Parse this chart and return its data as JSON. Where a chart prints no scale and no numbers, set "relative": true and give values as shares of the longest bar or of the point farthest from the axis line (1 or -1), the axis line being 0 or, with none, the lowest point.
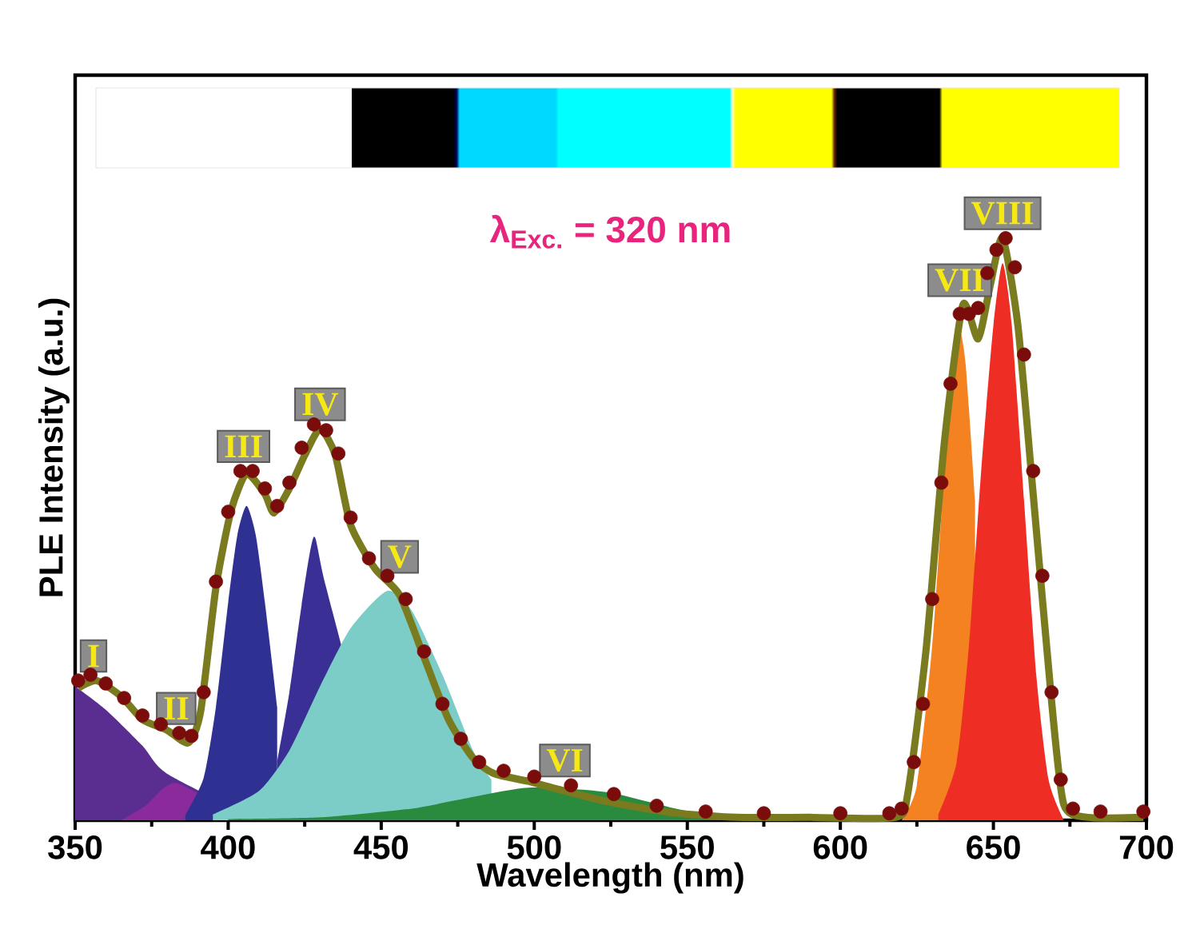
{
  "chart_data": {
    "type": "area",
    "relative": true,
    "xlabel": "Wavelength (nm)",
    "ylabel": "PLE Intensity (a.u.)",
    "xlim": [
      350,
      700
    ],
    "xticks": [
      350,
      400,
      450,
      500,
      550,
      600,
      650,
      700
    ],
    "series": [
      {
        "color": "#5a2d91",
        "x": [
          350,
          360,
          372,
          380,
          410
        ],
        "values": [
          0.23,
          0.19,
          0.128,
          0.08,
          0
        ]
      },
      {
        "color": "#8b2a9a",
        "x": [
          365,
          373,
          383,
          405
        ],
        "values": [
          0,
          0.025,
          0.064,
          0
        ]
      },
      {
        "color": "#2e3192",
        "x": [
          386,
          392,
          396,
          400,
          403,
          406,
          409,
          412,
          416
        ],
        "values": [
          0.009,
          0.073,
          0.195,
          0.374,
          0.49,
          0.54,
          0.49,
          0.374,
          0.195
        ]
      },
      {
        "color": "#3a2f95",
        "x": [
          416,
          420,
          424,
          428,
          432,
          452
        ],
        "values": [
          0.1,
          0.22,
          0.37,
          0.487,
          0.4,
          0
        ]
      },
      {
        "color": "#7ccdc8",
        "x": [
          395,
          410,
          420,
          430,
          440,
          452,
          460,
          470,
          480,
          486
        ],
        "values": [
          0.01,
          0.05,
          0.12,
          0.23,
          0.33,
          0.394,
          0.36,
          0.25,
          0.12,
          0.07
        ]
      },
      {
        "color": "#2a8a3e",
        "x": [
          400,
          430,
          460,
          475,
          498,
          524,
          550,
          576,
          600,
          620
        ],
        "values": [
          0.002,
          0.005,
          0.02,
          0.035,
          0.056,
          0.048,
          0.016,
          0.008,
          0.003,
          0
        ]
      },
      {
        "color": "#f58220",
        "x": [
          620,
          625,
          630,
          634,
          637,
          639,
          641,
          644
        ],
        "values": [
          0,
          0.06,
          0.3,
          0.6,
          0.8,
          0.843,
          0.78,
          0.55
        ]
      },
      {
        "color": "#ee2e24",
        "x": [
          632,
          638,
          642,
          646,
          650,
          653,
          656,
          660,
          664,
          668,
          673
        ],
        "values": [
          0.01,
          0.1,
          0.3,
          0.6,
          0.85,
          0.957,
          0.85,
          0.55,
          0.25,
          0.07,
          0
        ]
      },
      {
        "type": "scatter",
        "color": "#7b0c0c",
        "x": [
          351,
          355,
          360,
          366,
          372,
          378,
          384,
          388,
          392,
          396,
          400,
          404,
          408,
          412,
          416,
          420,
          424,
          428,
          432,
          436,
          440,
          446,
          452,
          458,
          464,
          470,
          476,
          482,
          490,
          500,
          512,
          526,
          540,
          556,
          575,
          600,
          616,
          620,
          624,
          627,
          630,
          633,
          636,
          639,
          642,
          645,
          648,
          651,
          654,
          657,
          660,
          663,
          666,
          669,
          672,
          676,
          685,
          699
        ],
        "values": [
          0.24,
          0.25,
          0.235,
          0.21,
          0.18,
          0.165,
          0.15,
          0.145,
          0.22,
          0.41,
          0.53,
          0.6,
          0.6,
          0.57,
          0.54,
          0.58,
          0.64,
          0.68,
          0.67,
          0.63,
          0.52,
          0.45,
          0.42,
          0.38,
          0.29,
          0.2,
          0.14,
          0.1,
          0.085,
          0.075,
          0.06,
          0.045,
          0.025,
          0.015,
          0.012,
          0.012,
          0.012,
          0.02,
          0.1,
          0.2,
          0.38,
          0.58,
          0.75,
          0.87,
          0.87,
          0.88,
          0.94,
          0.98,
          1.0,
          0.95,
          0.8,
          0.6,
          0.42,
          0.22,
          0.07,
          0.02,
          0.015,
          0.015
        ]
      },
      {
        "type": "line",
        "color": "#7a7a1e",
        "x": [
          351,
          357,
          365,
          372,
          380,
          387,
          391,
          396,
          401,
          406,
          412,
          415,
          420,
          425,
          430,
          435,
          440,
          448,
          456,
          464,
          472,
          480,
          487,
          498,
          508,
          524,
          545,
          566,
          590,
          618,
          622,
          628,
          634,
          640,
          645,
          649,
          653,
          658,
          663,
          669,
          673,
          681,
          699
        ],
        "values": [
          0.227,
          0.24,
          0.213,
          0.173,
          0.155,
          0.133,
          0.187,
          0.4,
          0.533,
          0.595,
          0.56,
          0.528,
          0.57,
          0.627,
          0.672,
          0.627,
          0.507,
          0.432,
          0.387,
          0.28,
          0.173,
          0.107,
          0.08,
          0.067,
          0.053,
          0.032,
          0.013,
          0.005,
          0.005,
          0.005,
          0.045,
          0.293,
          0.65,
          0.885,
          0.827,
          0.92,
          1.0,
          0.85,
          0.56,
          0.205,
          0.027,
          0.005,
          0.005
        ]
      }
    ],
    "annotations": [
      {
        "text": "I",
        "x": 356,
        "y": 0.24
      },
      {
        "text": "II",
        "x": 383,
        "y": 0.15
      },
      {
        "text": "III",
        "x": 405,
        "y": 0.6
      },
      {
        "text": "IV",
        "x": 430,
        "y": 0.672
      },
      {
        "text": "V",
        "x": 456,
        "y": 0.41
      },
      {
        "text": "VI",
        "x": 510,
        "y": 0.06
      },
      {
        "text": "VII",
        "x": 639,
        "y": 0.885
      },
      {
        "text": "VIII",
        "x": 653,
        "y": 1.0
      },
      "λ$_{Exc.}$ = 320 nm"
    ]
  }
}
